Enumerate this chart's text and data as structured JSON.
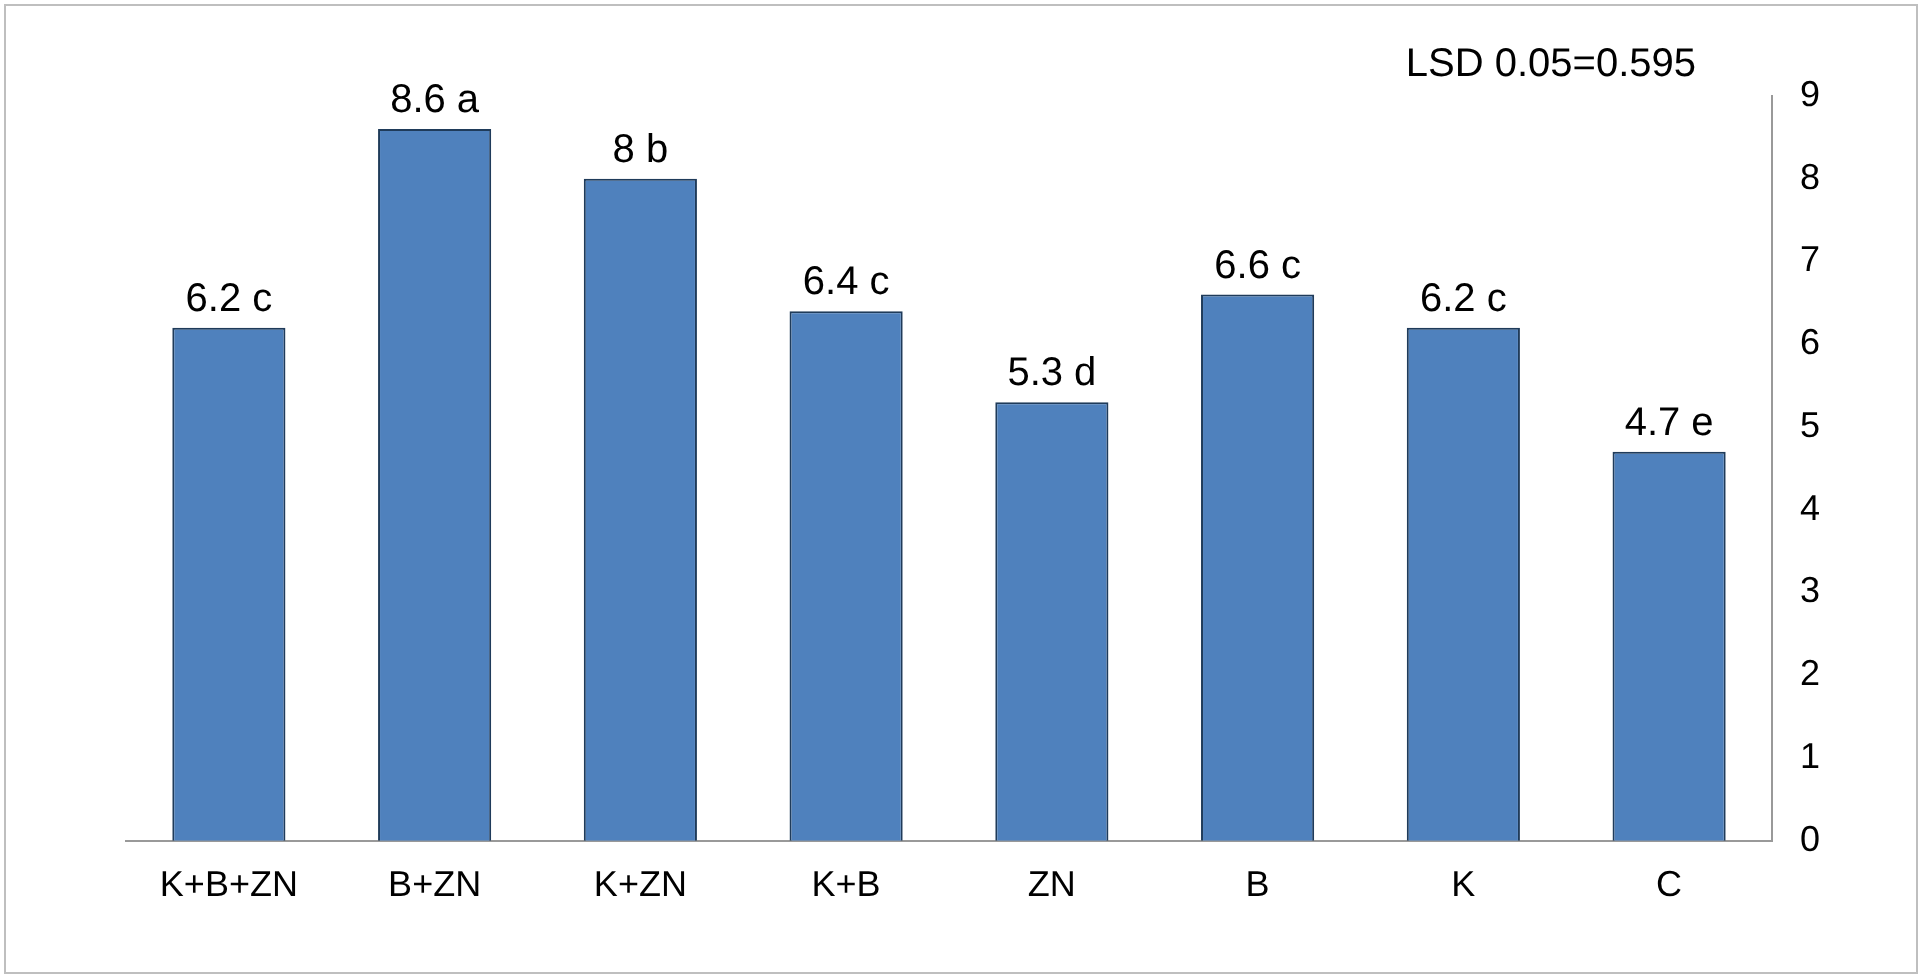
{
  "chart_data": {
    "type": "bar",
    "categories": [
      "K+B+ZN",
      "B+ZN",
      "K+ZN",
      "K+B",
      "ZN",
      "B",
      "K",
      "C"
    ],
    "values": [
      6.2,
      8.6,
      8,
      6.4,
      5.3,
      6.6,
      6.2,
      4.7
    ],
    "value_labels": [
      "6.2 c",
      "8.6 a",
      "8 b",
      "6.4 c",
      "5.3 d",
      "6.6 c",
      "6.2 c",
      "4.7 e"
    ],
    "color": "#4f81bd",
    "ylim": [
      0,
      9
    ],
    "yticks": [
      0,
      1,
      2,
      3,
      4,
      5,
      6,
      7,
      8,
      9
    ],
    "grid": false,
    "legend": false,
    "annotations": [
      "LSD 0.05=0.595"
    ]
  }
}
